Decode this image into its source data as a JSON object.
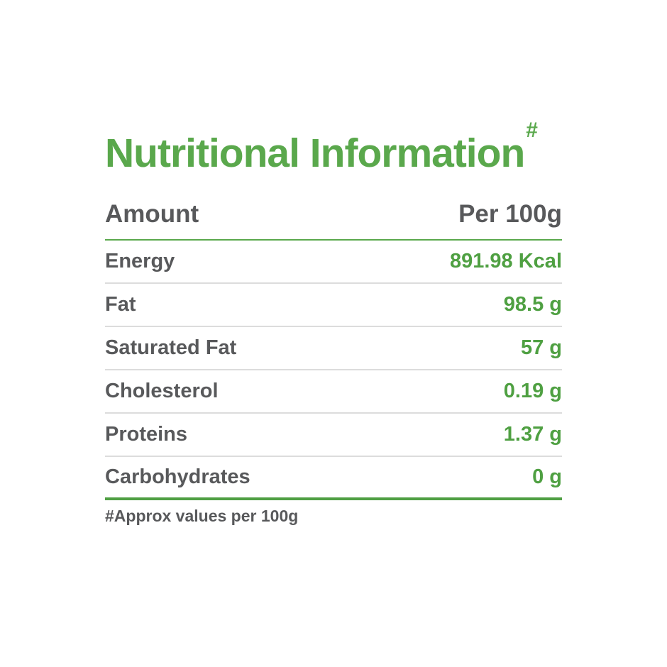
{
  "title": {
    "text": "Nutritional Information",
    "superscript": "#"
  },
  "table": {
    "header": {
      "amount_label": "Amount",
      "per_label": "Per 100g"
    },
    "rows": [
      {
        "label": "Energy",
        "value": "891.98 Kcal"
      },
      {
        "label": "Fat",
        "value": "98.5 g"
      },
      {
        "label": "Saturated Fat",
        "value": "57 g"
      },
      {
        "label": "Cholesterol",
        "value": "0.19 g"
      },
      {
        "label": "Proteins",
        "value": "1.37 g"
      },
      {
        "label": "Carbohydrates",
        "value": "0 g"
      }
    ]
  },
  "footer": {
    "note": "#Approx values per 100g"
  },
  "colors": {
    "accent_green": "#5aa84c",
    "value_green": "#4fa042",
    "bottom_rule_green": "#4f9f43",
    "text_gray": "#58595b",
    "row_separator": "#dcdcdc",
    "background": "#ffffff"
  }
}
